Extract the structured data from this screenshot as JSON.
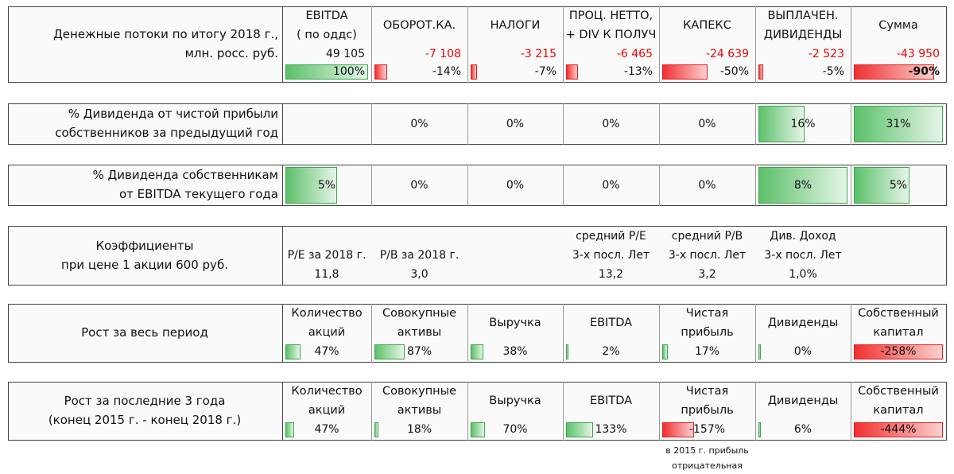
{
  "cash_flows": {
    "label": [
      "Денежные потоки по итогу 2018 г.,",
      "млн. росс. руб."
    ],
    "columns": [
      {
        "header": [
          "EBITDA",
          "( по оддс)"
        ],
        "value": "49 105",
        "share": "100%"
      },
      {
        "header": [
          "ОБОРОТ.КА."
        ],
        "value": "-7 108",
        "share": "-14%"
      },
      {
        "header": [
          "НАЛОГИ"
        ],
        "value": "-3 215",
        "share": "-7%"
      },
      {
        "header": [
          "ПРОЦ. НЕТТО,",
          "+ DIV К ПОЛУЧ"
        ],
        "value": "-6 465",
        "share": "-13%"
      },
      {
        "header": [
          "КАПЕКС"
        ],
        "value": "-24 639",
        "share": "-50%"
      },
      {
        "header": [
          "ВЫПЛАЧЕН.",
          "ДИВИДЕНДЫ"
        ],
        "value": "-2 523",
        "share": "-5%"
      },
      {
        "header": [
          "Сумма"
        ],
        "value": "-43 950",
        "share": "-90%"
      }
    ]
  },
  "dividend_net_income": {
    "label": [
      "% Дивиденда от чистой прибыли",
      "собственников за предыдущий год"
    ],
    "values": [
      null,
      "0%",
      "0%",
      "0%",
      "0%",
      "16%",
      "31%"
    ]
  },
  "dividend_ebitda": {
    "label": [
      "% Дивиденда собственникам",
      "от EBITDA текущего года"
    ],
    "values": [
      "5%",
      "0%",
      "0%",
      "0%",
      "0%",
      "8%",
      "5%"
    ]
  },
  "ratios": {
    "label": [
      "Коэффициенты",
      "при цене 1 акции 600 руб."
    ],
    "items": [
      {
        "header": [
          "P/E за 2018 г."
        ],
        "value": "11,8"
      },
      {
        "header": [
          "P/B за 2018 г."
        ],
        "value": "3,0"
      },
      null,
      {
        "header": [
          "средний P/E",
          "3-х посл. Лет"
        ],
        "value": "13,2"
      },
      {
        "header": [
          "средний P/B",
          "3-х посл. Лет"
        ],
        "value": "3,2"
      },
      {
        "header": [
          "Див. Доход",
          "3-х посл. Лет"
        ],
        "value": "1,0%"
      }
    ]
  },
  "growth_total": {
    "label": [
      "Рост за весь период"
    ],
    "columns": [
      {
        "header": [
          "Количество",
          "акций"
        ],
        "value": "47%"
      },
      {
        "header": [
          "Совокупные",
          "активы"
        ],
        "value": "87%"
      },
      {
        "header": [
          "Выручка"
        ],
        "value": "38%"
      },
      {
        "header": [
          "EBITDA"
        ],
        "value": "2%"
      },
      {
        "header": [
          "Чистая",
          "прибыль"
        ],
        "value": "17%"
      },
      {
        "header": [
          "Дивиденды"
        ],
        "value": "0%"
      },
      {
        "header": [
          "Собственный",
          "капитал"
        ],
        "value": "-258%"
      }
    ]
  },
  "growth_3y": {
    "label": [
      "Рост за последние 3 года",
      "(конец 2015 г. - конец 2018 г.)"
    ],
    "columns": [
      {
        "header": [
          "Количество",
          "акций"
        ],
        "value": "47%"
      },
      {
        "header": [
          "Совокупные",
          "активы"
        ],
        "value": "18%"
      },
      {
        "header": [
          "Выручка"
        ],
        "value": "70%"
      },
      {
        "header": [
          "EBITDA"
        ],
        "value": "133%"
      },
      {
        "header": [
          "Чистая",
          "прибыль"
        ],
        "value": "-157%"
      },
      {
        "header": [
          "Дивиденды"
        ],
        "value": "6%"
      },
      {
        "header": [
          "Собственный",
          "капитал"
        ],
        "value": "-444%"
      }
    ],
    "note": [
      "в 2015 г. прибыль",
      "отрицательная"
    ]
  }
}
